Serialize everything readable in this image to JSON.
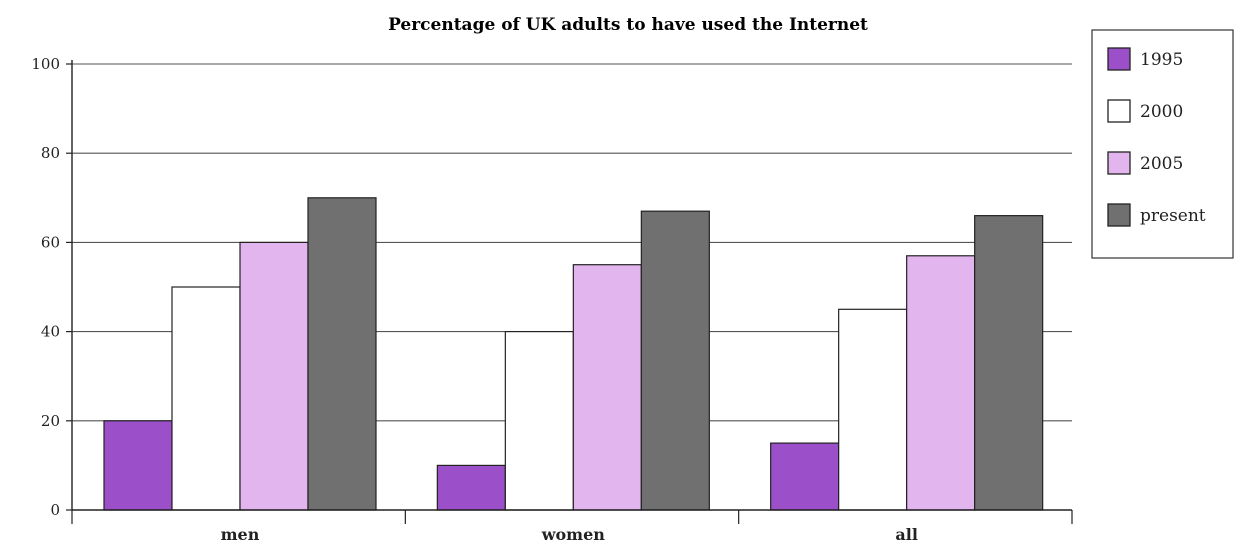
{
  "chart_data": {
    "type": "bar",
    "title": "Percentage of UK adults to have used the Internet",
    "xlabel": "",
    "ylabel": "",
    "categories": [
      "men",
      "women",
      "all"
    ],
    "series": [
      {
        "name": "1995",
        "values": [
          20,
          10,
          15
        ],
        "color": "#9b4fc9"
      },
      {
        "name": "2000",
        "values": [
          50,
          40,
          45
        ],
        "color": "#ffffff"
      },
      {
        "name": "2005",
        "values": [
          60,
          55,
          57
        ],
        "color": "#e3b5ef"
      },
      {
        "name": "present",
        "values": [
          70,
          67,
          66
        ],
        "color": "#707070"
      }
    ],
    "yticks": [
      "0",
      "20",
      "40",
      "60",
      "80",
      "100"
    ],
    "ylim": [
      0,
      100
    ],
    "grid": true,
    "legend_position": "right"
  }
}
